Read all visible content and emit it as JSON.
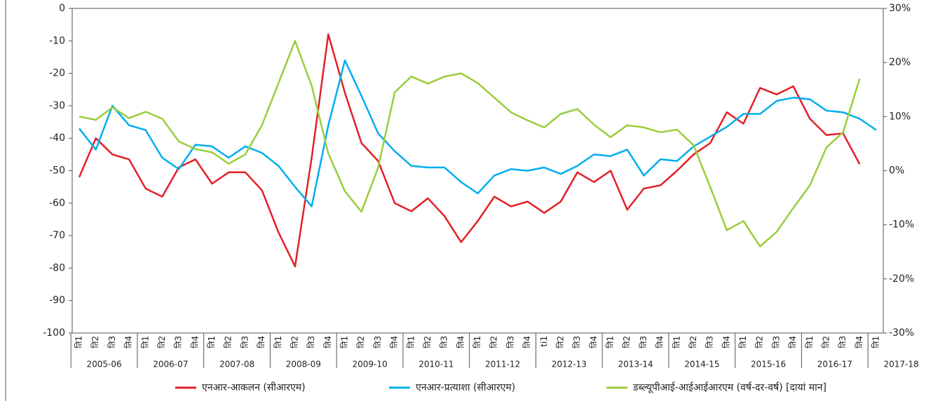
{
  "chart_data": {
    "type": "line",
    "categories": [
      "ति1",
      "ति2",
      "ति3",
      "ति4",
      "ति1",
      "ति2",
      "ति3",
      "ति4",
      "ति1",
      "ति2",
      "ति3",
      "ति4",
      "ति1",
      "ति2",
      "ति3",
      "ति4",
      "ति1",
      "ति2",
      "ति3",
      "ति4",
      "ति1",
      "ति2",
      "ति3",
      "ति4",
      "ति1",
      "ति2",
      "ति3",
      "ति4",
      "ti1",
      "ति2",
      "ति3",
      "ति4",
      "ति1",
      "ति2",
      "ति3",
      "ति4",
      "ति1",
      "ति2",
      "ति3",
      "ति4",
      "ति1",
      "ति2",
      "ति3",
      "ति4",
      "ति1",
      "ति2",
      "ति3",
      "ति4",
      "ति1"
    ],
    "groups": [
      "2005-06",
      "2006-07",
      "2007-08",
      "2008-09",
      "2009-10",
      "2010-11",
      "2011-12",
      "2012-13",
      "2013-14",
      "2014-15",
      "2015-16",
      "2016-17",
      "2017-18"
    ],
    "ylim": [
      -100,
      0
    ],
    "yticks": [
      0,
      -10,
      -20,
      -30,
      -40,
      -50,
      -60,
      -70,
      -80,
      -90,
      -100
    ],
    "y2lim": [
      -30,
      30
    ],
    "y2ticks": [
      {
        "value": 30,
        "label": "30%"
      },
      {
        "value": 20,
        "label": "20%"
      },
      {
        "value": 10,
        "label": "10%"
      },
      {
        "value": 0,
        "label": "0%"
      },
      {
        "value": -10,
        "label": "-10%"
      },
      {
        "value": -20,
        "label": "-20%"
      },
      {
        "value": -30,
        "label": "-30%"
      }
    ],
    "legend": "bottom",
    "series": [
      {
        "name": "एनआर-आकलन (सीआरएम)",
        "color": "#e31f26",
        "values": [
          -52,
          -40,
          -45,
          -46.5,
          -55.5,
          -58,
          -49,
          -46.5,
          -54,
          -50.5,
          -50.5,
          -56,
          -69,
          -79.5,
          -46,
          -8,
          -26,
          -41.5,
          -47,
          -60,
          -62.5,
          -58.5,
          -64,
          -72,
          -65.5,
          -58,
          -61,
          -59.5,
          -63,
          -59.5,
          -50.5,
          -53.5,
          -50,
          -62,
          -55.5,
          -54.5,
          -50,
          -45,
          -41.5,
          -32,
          -35.5,
          -24.5,
          -26.5,
          -24,
          -34,
          -39,
          -38.5,
          -48,
          null
        ]
      },
      {
        "name": "एनआर-प्रत्याशा (सीआरएम)",
        "color": "#00aeef",
        "values": [
          -37,
          -43.5,
          -30,
          -36,
          -37.5,
          -46,
          -49.5,
          -42,
          -42.5,
          -46,
          -42.5,
          -44.5,
          -48.5,
          -55,
          -61,
          -36,
          -16,
          -27,
          -38.5,
          -44,
          -48.5,
          -49,
          -49,
          -53.5,
          -57,
          -51.5,
          -49.5,
          -50,
          -49,
          -51,
          -48.5,
          -45,
          -45.5,
          -43.5,
          -51.5,
          -46.5,
          -47,
          -42.5,
          -39.5,
          -36.5,
          -32.5,
          -32.5,
          -28.5,
          -27.5,
          -28,
          -31.5,
          -32,
          -34,
          -37.5
        ]
      },
      {
        "name": "डब्ल्यूपीआई-आईआईआरएम (वर्ष-दर-वर्ष) [दायां मान]",
        "color": "#9acd3c",
        "axis": "y2",
        "values": [
          10,
          9.4,
          11.7,
          9.7,
          10.9,
          9.6,
          5.4,
          4,
          3.4,
          1.3,
          3,
          8.4,
          16.2,
          24,
          15.7,
          3.2,
          -3.8,
          -7.6,
          0.6,
          14.5,
          17.4,
          16.1,
          17.4,
          18,
          16.2,
          13.5,
          10.8,
          9.3,
          8,
          10.5,
          11.4,
          8.5,
          6.2,
          8.4,
          8,
          7.1,
          7.6,
          4.7,
          -3,
          -11,
          -9.3,
          -14,
          -11.3,
          -6.9,
          -2.7,
          4.3,
          7.1,
          17,
          null
        ]
      }
    ]
  }
}
